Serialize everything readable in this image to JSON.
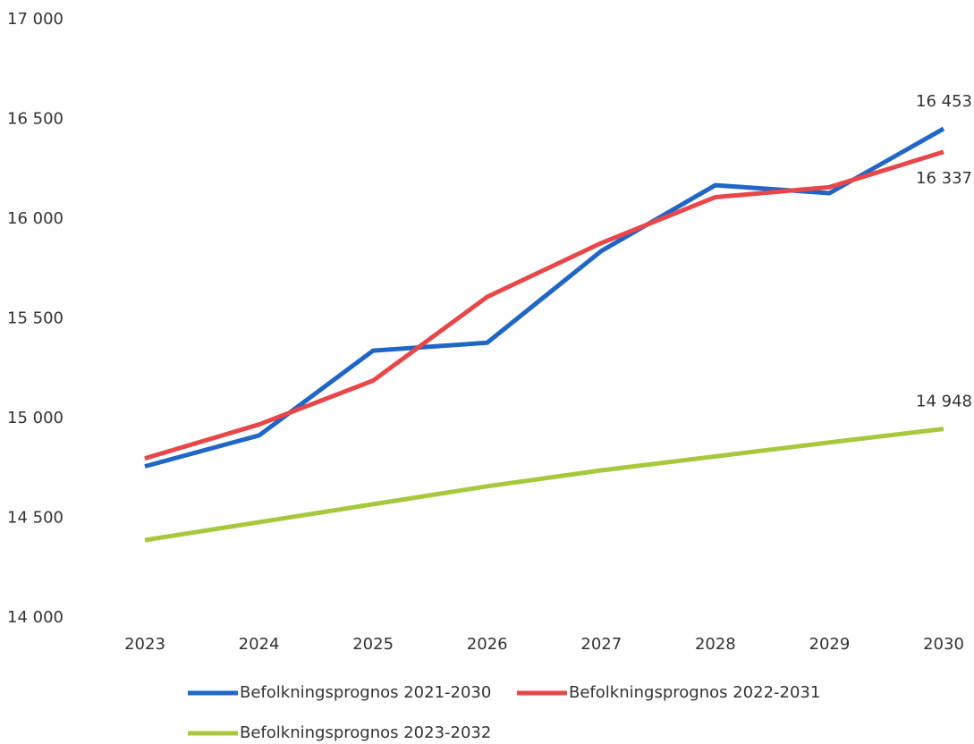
{
  "chart_data": {
    "type": "line",
    "x": [
      2023,
      2024,
      2025,
      2026,
      2027,
      2028,
      2029,
      2030
    ],
    "xlim": [
      2023,
      2030
    ],
    "xticks": [
      2023,
      2024,
      2025,
      2026,
      2027,
      2028,
      2029,
      2030
    ],
    "ylim": [
      14000,
      17000
    ],
    "yticks": [
      {
        "value": 14000,
        "label": "14 000"
      },
      {
        "value": 14500,
        "label": "14 500"
      },
      {
        "value": 15000,
        "label": "15 000"
      },
      {
        "value": 15500,
        "label": "15 500"
      },
      {
        "value": 16000,
        "label": "16 000"
      },
      {
        "value": 16500,
        "label": "16 500"
      },
      {
        "value": 17000,
        "label": "17 000"
      }
    ],
    "grid": false,
    "legend": "bottom",
    "series": [
      {
        "name": "Befolkningsprognos 2021-2030",
        "color": "#1f66c6",
        "values": [
          14760,
          14915,
          15340,
          15380,
          15840,
          16170,
          16130,
          16453
        ],
        "value_labels": [
          null,
          null,
          null,
          null,
          null,
          null,
          null,
          "16 453"
        ]
      },
      {
        "name": "Befolkningsprognos 2022-2031",
        "color": "#e8474a",
        "values": [
          14800,
          14970,
          15190,
          15610,
          15880,
          16110,
          16160,
          16337
        ],
        "value_labels": [
          null,
          null,
          null,
          null,
          null,
          null,
          null,
          "16 337"
        ]
      },
      {
        "name": "Befolkningsprognos 2023-2032",
        "color": "#a6c83c",
        "values": [
          14390,
          14480,
          14570,
          14660,
          14740,
          14810,
          14880,
          14948
        ],
        "value_labels": [
          null,
          null,
          null,
          null,
          null,
          null,
          null,
          "14 948"
        ]
      }
    ]
  }
}
